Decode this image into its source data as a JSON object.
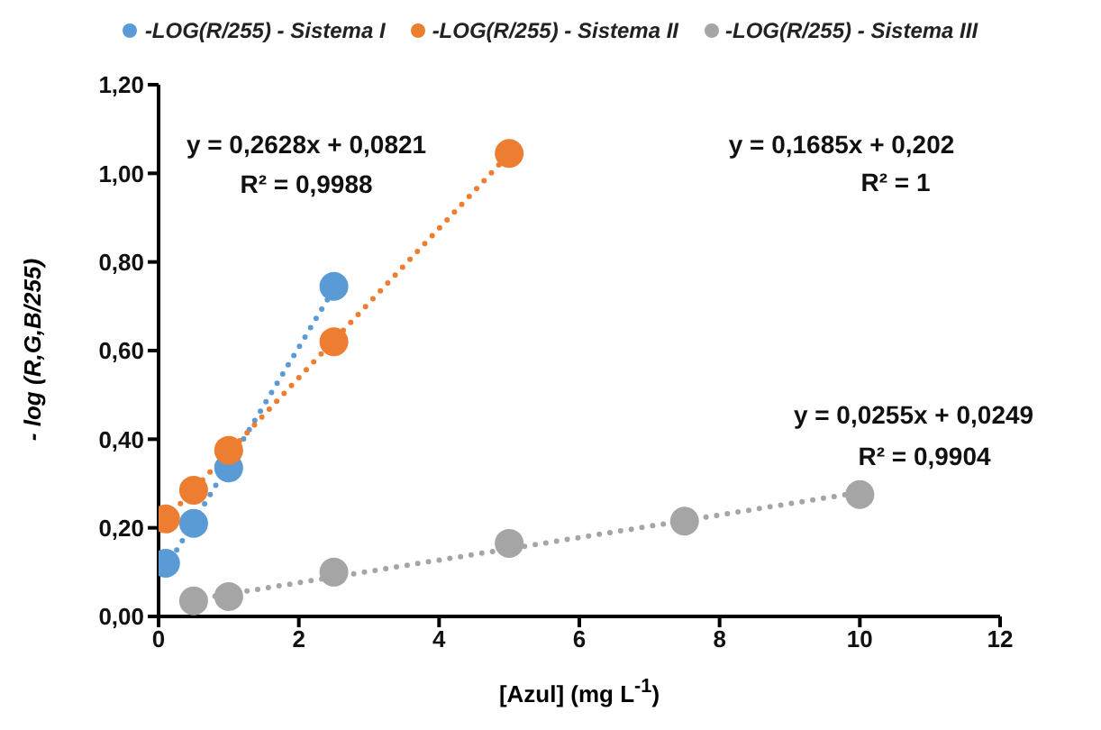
{
  "chart_data": {
    "type": "scatter",
    "xlabel": "[Azul] (mg L$^{-1}$)",
    "ylabel": "- log (R,G,B/255)",
    "marker": "circle",
    "legend": "top",
    "grid": false,
    "xlim": [
      0,
      12
    ],
    "xticks": [
      0,
      2,
      4,
      6,
      8,
      10,
      12
    ],
    "ylim": [
      0,
      1.2
    ],
    "yticks": [
      {
        "value": 0,
        "label": "0,00"
      },
      {
        "value": 0.2,
        "label": "0,20"
      },
      {
        "value": 0.4,
        "label": "0,40"
      },
      {
        "value": 0.6,
        "label": "0,60"
      },
      {
        "value": 0.8,
        "label": "0,80"
      },
      {
        "value": 1,
        "label": "1,00"
      },
      {
        "value": 1.2,
        "label": "1,20"
      }
    ],
    "series": [
      {
        "type": "line",
        "marker": "none",
        "line_style": "dotted",
        "color": "#5b9bd5",
        "x": [
          0.1,
          2.5
        ],
        "values": [
          0.108,
          0.739
        ]
      },
      {
        "type": "line",
        "marker": "none",
        "line_style": "dotted",
        "color": "#ed7d31",
        "x": [
          0.1,
          5
        ],
        "values": [
          0.219,
          1.044
        ]
      },
      {
        "type": "line",
        "marker": "none",
        "line_style": "dotted",
        "color": "#a5a5a5",
        "x": [
          0.5,
          10
        ],
        "values": [
          0.038,
          0.28
        ]
      },
      {
        "name": "-LOG(R/255) - Sistema I",
        "color": "#5b9bd5",
        "x": [
          0.1,
          0.5,
          1,
          2.5
        ],
        "values": [
          0.12,
          0.21,
          0.335,
          0.745
        ]
      },
      {
        "name": "-LOG(R/255) - Sistema II",
        "color": "#ed7d31",
        "x": [
          0.1,
          0.5,
          1,
          2.5,
          5
        ],
        "values": [
          0.22,
          0.285,
          0.375,
          0.62,
          1.045
        ]
      },
      {
        "name": "-LOG(R/255) - Sistema III",
        "color": "#a5a5a5",
        "x": [
          0.5,
          1,
          2.5,
          5,
          7.5,
          10
        ],
        "values": [
          0.035,
          0.045,
          0.1,
          0.165,
          0.215,
          0.275
        ]
      }
    ],
    "annotations": [
      "y = 0,2628x + 0,0821",
      "R² = 0,9988",
      "y = 0,1685x + 0,202",
      "R² = 1",
      "y = 0,0255x + 0,0249",
      "R² = 0,9904"
    ]
  }
}
